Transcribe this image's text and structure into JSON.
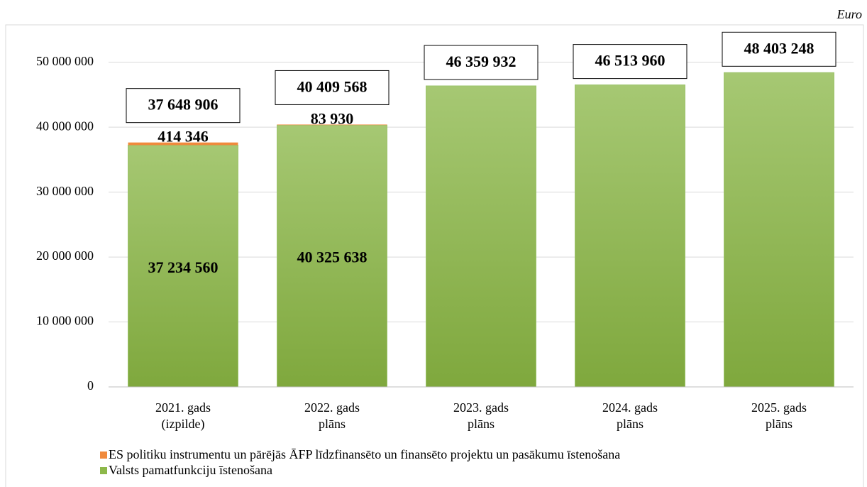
{
  "chart_data": {
    "type": "stacked-bar",
    "unit_label": "Euro",
    "categories": [
      [
        "2021. gads",
        "(izpilde)"
      ],
      [
        "2022. gads",
        "plāns"
      ],
      [
        "2023. gads",
        "plāns"
      ],
      [
        "2024. gads",
        "plāns"
      ],
      [
        "2025. gads",
        "plāns"
      ]
    ],
    "series": [
      {
        "name": "ES politiku instrumentu un pārējās ĀFP līdzfinansēto un finansēto projektu un pasākumu īstenošana",
        "color": "#f08a3c",
        "values": [
          414346,
          83930,
          null,
          null,
          null
        ],
        "value_labels": [
          "414 346",
          "83 930",
          null,
          null,
          null
        ]
      },
      {
        "name": "Valsts pamatfunkciju īstenošana",
        "color": "#8db84a",
        "values": [
          37234560,
          40325638,
          46359932,
          46513960,
          48403248
        ],
        "value_labels": [
          "37 234 560",
          "40 325 638",
          null,
          null,
          null
        ]
      }
    ],
    "totals": [
      37648906,
      40409568,
      46359932,
      46513960,
      48403248
    ],
    "total_labels": [
      "37 648 906",
      "40 409 568",
      "46 359 932",
      "46 513 960",
      "48 403 248"
    ],
    "ylim": [
      0,
      55000000
    ],
    "yticks": [
      0,
      {
        "value": 10000000,
        "label": "10 000 000"
      },
      {
        "value": 20000000,
        "label": "20 000 000"
      },
      {
        "value": 30000000,
        "label": "30 000 000"
      },
      {
        "value": 40000000,
        "label": "40 000 000"
      },
      {
        "value": 50000000,
        "label": "50 000 000"
      }
    ],
    "grid": true
  }
}
